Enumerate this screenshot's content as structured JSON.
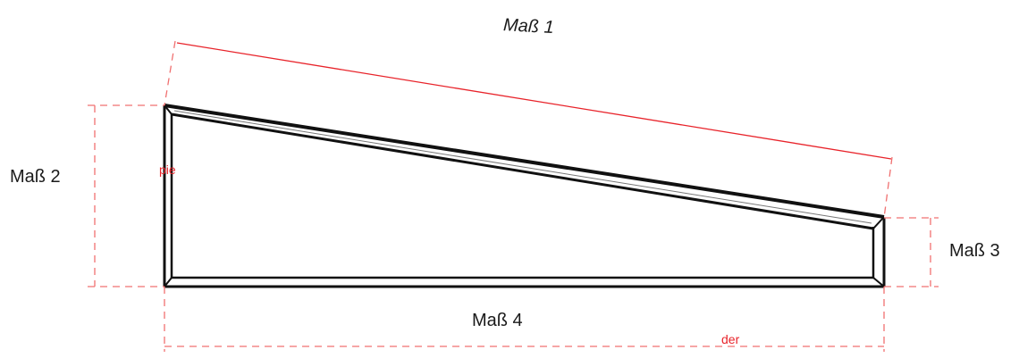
{
  "diagram": {
    "labels": {
      "dim1": "Maß 1",
      "dim2": "Maß 2",
      "dim3": "Maß 3",
      "dim4": "Maß 4"
    },
    "notes": {
      "left": "pie",
      "bottom": "der"
    },
    "colors": {
      "frame": "#111111",
      "dimension": "#e8232a",
      "dimension_dashed": "#f07070",
      "text": "#1a1a1a"
    }
  }
}
